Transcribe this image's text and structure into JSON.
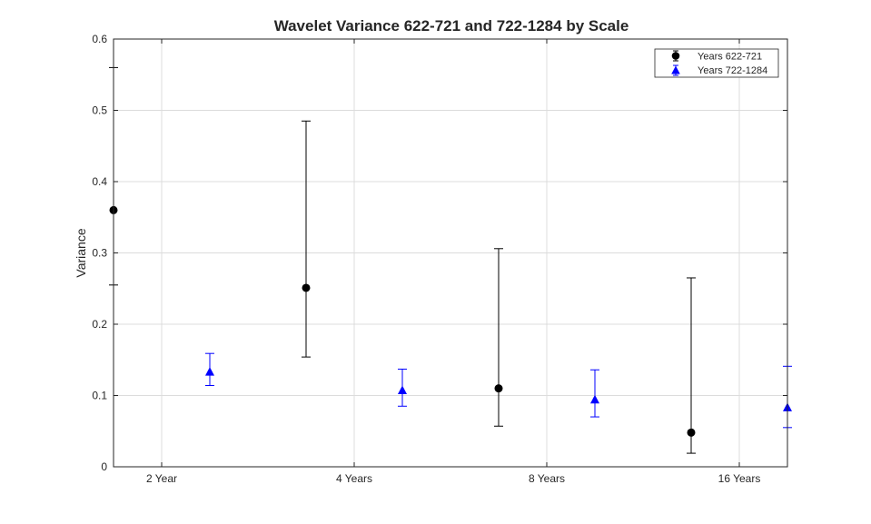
{
  "chart_data": {
    "type": "scatter",
    "title": "Wavelet Variance 622-721 and 722-1284 by Scale",
    "xlabel": "",
    "ylabel": "Variance",
    "xlim": [
      0.75,
      4.25
    ],
    "ylim": [
      0,
      0.6
    ],
    "y_ticks": [
      0,
      0.1,
      0.2,
      0.3,
      0.4,
      0.5,
      0.6
    ],
    "x_ticks": [
      {
        "x": 1,
        "label": "2 Year"
      },
      {
        "x": 2,
        "label": "4 Years"
      },
      {
        "x": 3,
        "label": "8 Years"
      },
      {
        "x": 4,
        "label": "16 Years"
      }
    ],
    "grid": true,
    "legend_position": "top-right",
    "series": [
      {
        "name": "Years 622-721",
        "marker": "circle",
        "color": "#000000",
        "points": [
          {
            "x": 0.75,
            "y": 0.36,
            "lower": 0.255,
            "upper": 0.56
          },
          {
            "x": 1.75,
            "y": 0.251,
            "lower": 0.154,
            "upper": 0.485
          },
          {
            "x": 2.75,
            "y": 0.11,
            "lower": 0.057,
            "upper": 0.306
          },
          {
            "x": 3.75,
            "y": 0.048,
            "lower": 0.019,
            "upper": 0.265
          }
        ]
      },
      {
        "name": "Years 722-1284",
        "marker": "triangle",
        "color": "#0000ff",
        "points": [
          {
            "x": 1.25,
            "y": 0.133,
            "lower": 0.114,
            "upper": 0.159
          },
          {
            "x": 2.25,
            "y": 0.107,
            "lower": 0.085,
            "upper": 0.137
          },
          {
            "x": 3.25,
            "y": 0.094,
            "lower": 0.07,
            "upper": 0.136
          },
          {
            "x": 4.25,
            "y": 0.083,
            "lower": 0.055,
            "upper": 0.141
          }
        ]
      }
    ]
  }
}
